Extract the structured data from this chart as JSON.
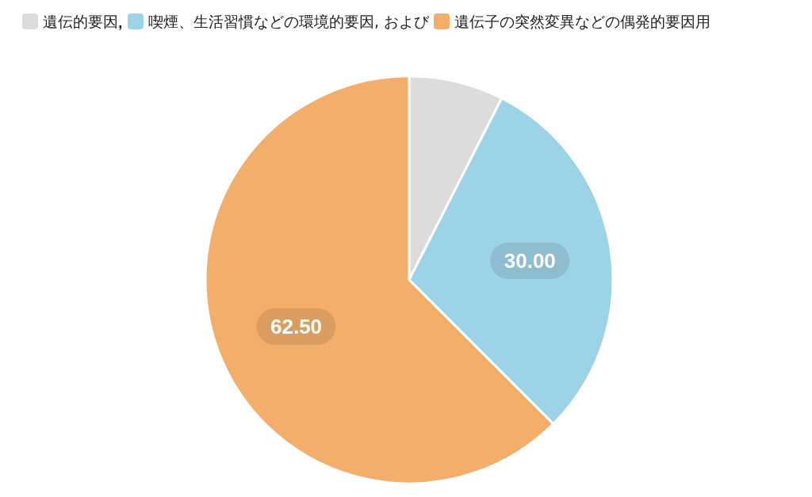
{
  "chart_data": {
    "type": "pie",
    "categories": [
      "遺伝的要因",
      "喫煙、生活習慣などの環境的要因, および",
      "遺伝子の突然変異などの偶発的要因用"
    ],
    "values": [
      7.5,
      30.0,
      62.5
    ],
    "colors": [
      "#dcdcdc",
      "#9dd3e6",
      "#f3ae6b"
    ],
    "value_labels": [
      null,
      "30.00",
      "62.50"
    ],
    "legend": "top left"
  }
}
